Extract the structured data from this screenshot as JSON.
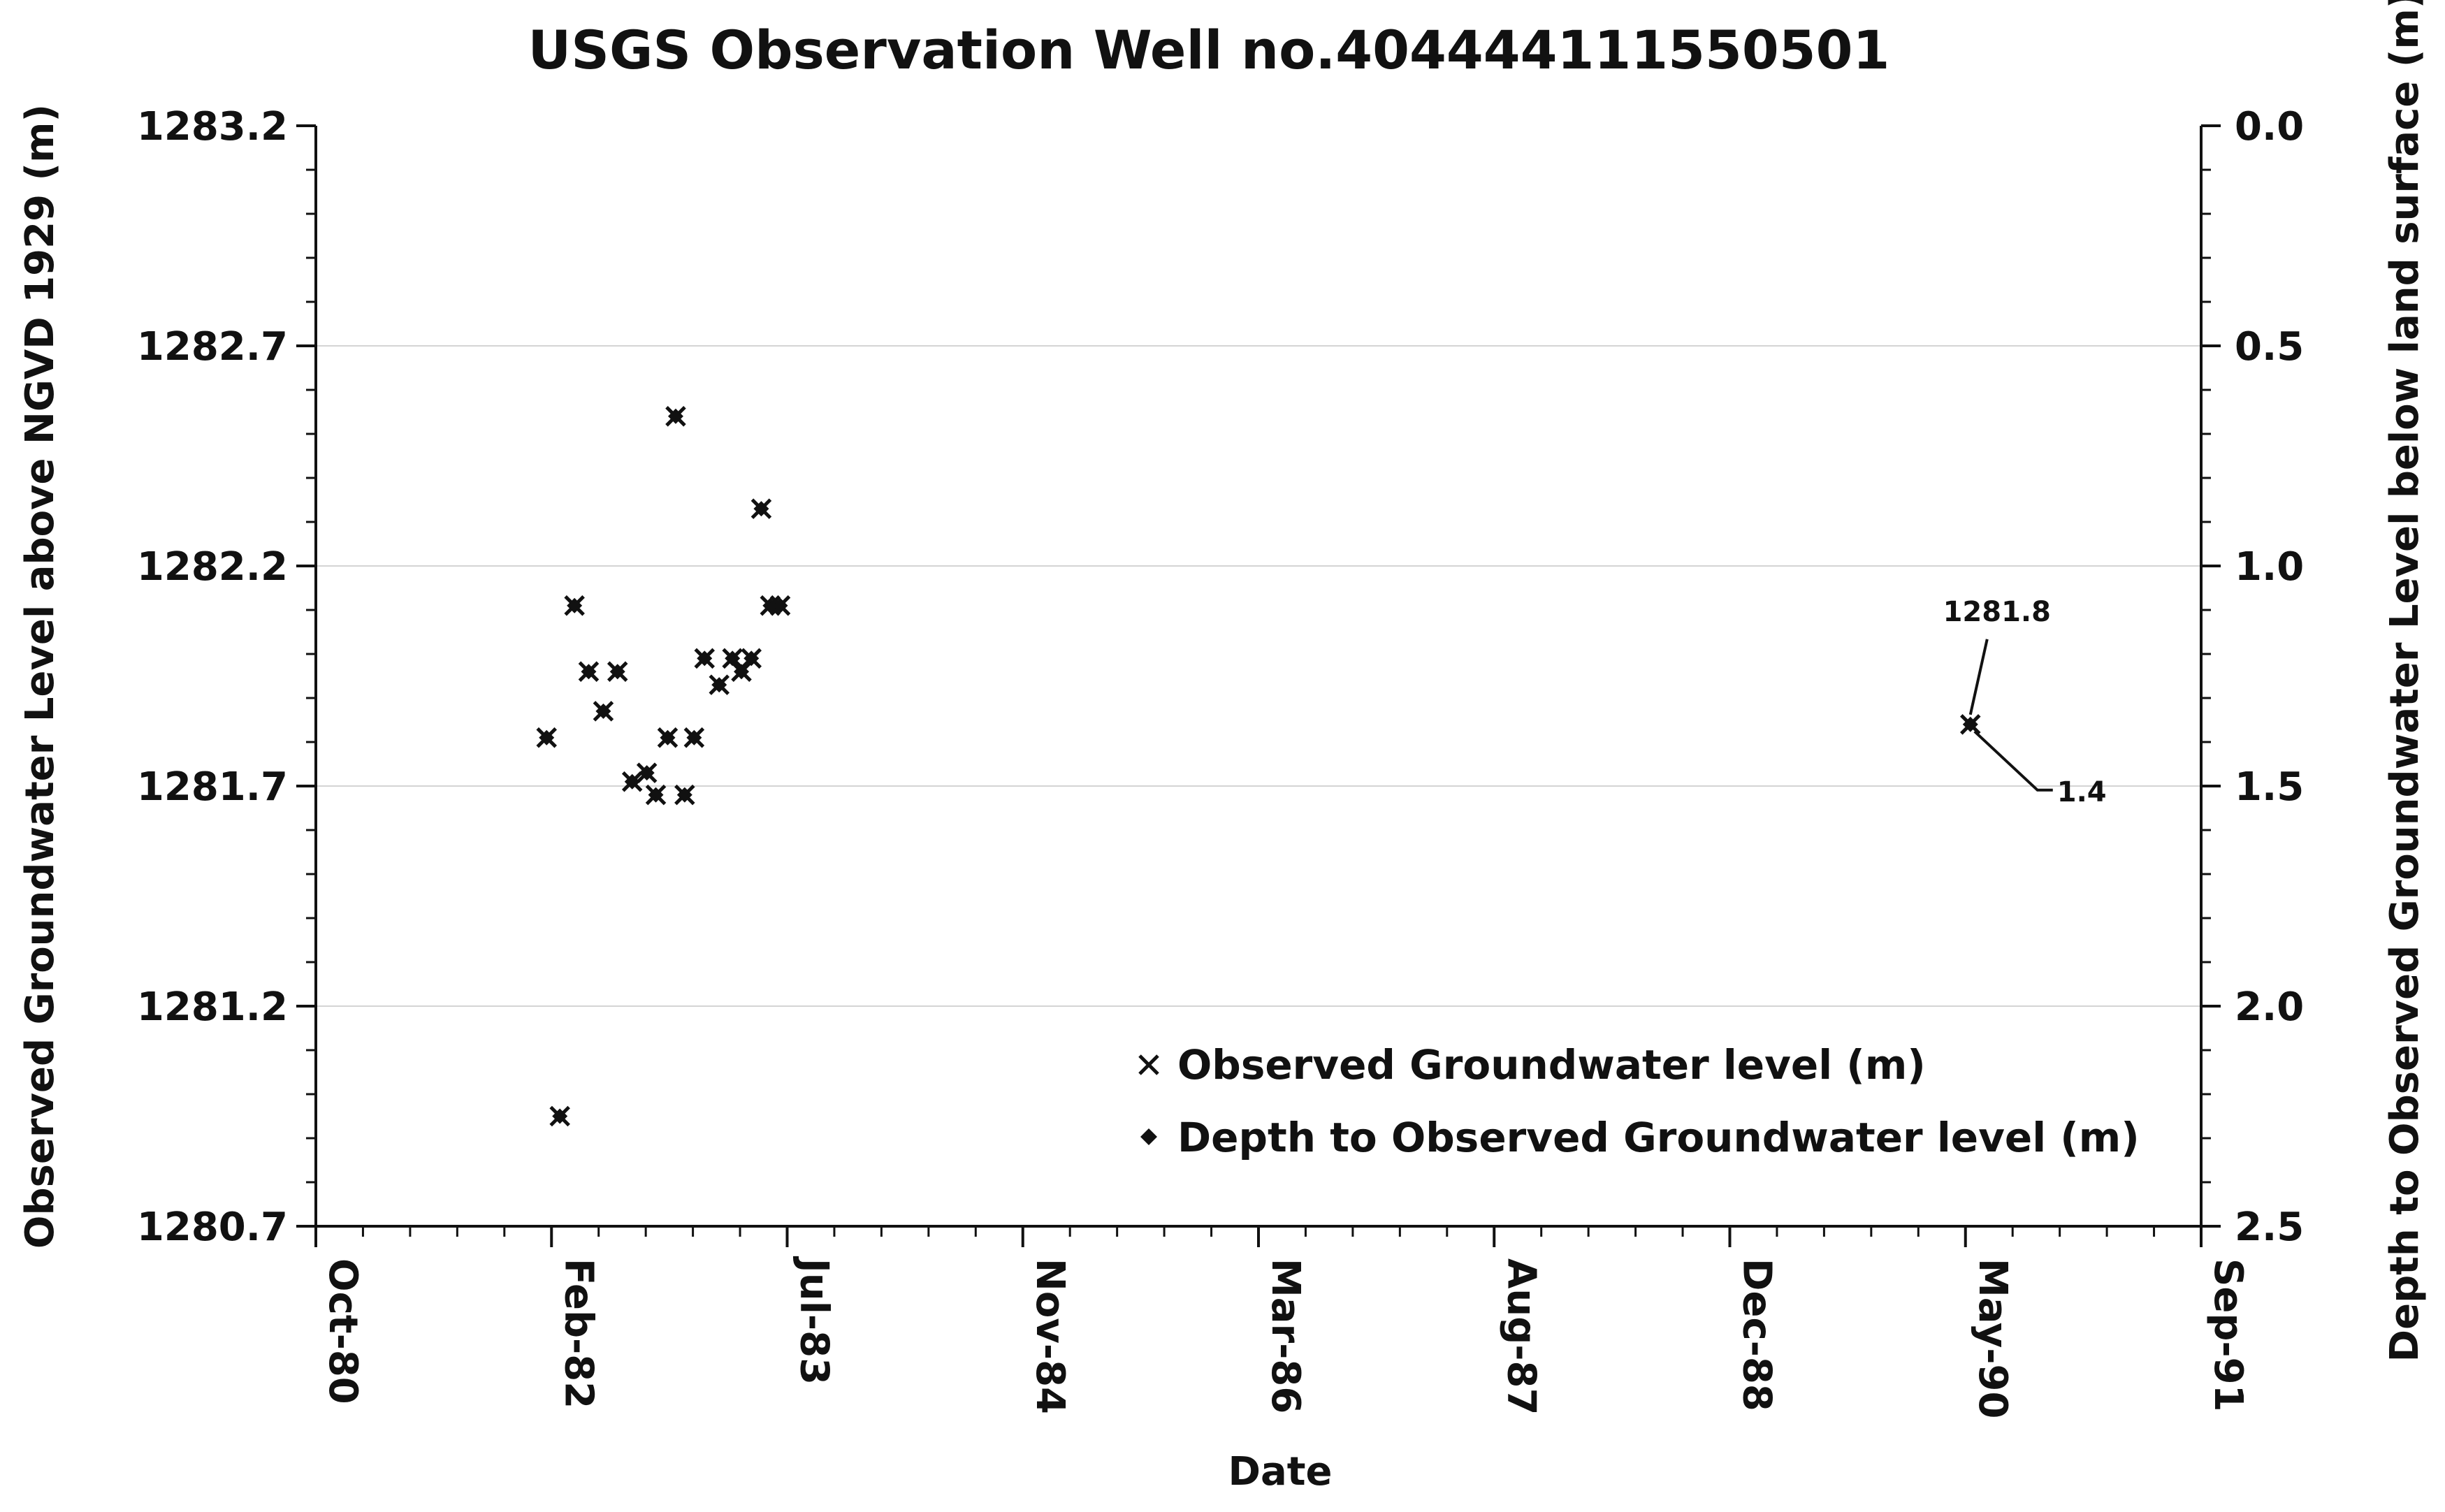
{
  "chart_data": {
    "type": "scatter",
    "title": "USGS Observation Well no.404444111550501",
    "xlabel": "Date",
    "ylabel": "Observed Groundwater Level above NGVD 1929 (m)",
    "y2label": "Depth to Observed Groundwater  Level below land surface (m)",
    "x_tick_labels": [
      "Oct-80",
      "Feb-82",
      "Jul-83",
      "Nov-84",
      "Mar-86",
      "Aug-87",
      "Dec-88",
      "May-90",
      "Sep-91"
    ],
    "xlim": [
      "1980-10-01",
      "1991-09-01"
    ],
    "ylim": [
      1280.7,
      1283.2
    ],
    "y_ticks": [
      "1280.7",
      "1281.2",
      "1281.7",
      "1282.2",
      "1282.7",
      "1283.2"
    ],
    "y2lim": [
      2.5,
      0.0
    ],
    "y2_ticks": [
      "0.0",
      "0.5",
      "1.0",
      "1.5",
      "2.0",
      "2.5"
    ],
    "grid": "horizontal",
    "legend_position": "bottom-right",
    "series": [
      {
        "name": "Observed Groundwater level (m)",
        "marker": "x",
        "x": [
          "1982-02-01",
          "1982-03-01",
          "1982-04-01",
          "1982-05-01",
          "1982-06-01",
          "1982-07-01",
          "1982-08-01",
          "1982-09-01",
          "1982-09-20",
          "1982-10-15",
          "1982-11-01",
          "1982-11-20",
          "1982-12-10",
          "1983-01-01",
          "1983-02-01",
          "1983-03-01",
          "1983-03-20",
          "1983-04-10",
          "1983-05-01",
          "1983-05-20",
          "1983-06-10",
          "1990-05-01"
        ],
        "y": [
          1281.81,
          1280.95,
          1282.11,
          1281.96,
          1281.87,
          1281.96,
          1281.71,
          1281.73,
          1281.68,
          1281.81,
          1282.54,
          1281.68,
          1281.81,
          1281.99,
          1281.93,
          1281.99,
          1281.96,
          1281.99,
          1282.33,
          1282.11,
          1282.11,
          1281.84
        ]
      },
      {
        "name": "Depth to Observed Groundwater level (m)",
        "marker": "diamond",
        "x": [
          "1982-02-01",
          "1982-03-01",
          "1982-04-01",
          "1982-05-01",
          "1982-06-01",
          "1982-07-01",
          "1982-08-01",
          "1982-09-01",
          "1982-09-20",
          "1982-10-15",
          "1982-11-01",
          "1982-11-20",
          "1982-12-10",
          "1983-01-01",
          "1983-02-01",
          "1983-03-01",
          "1983-03-20",
          "1983-04-10",
          "1983-05-01",
          "1983-05-20",
          "1983-06-10",
          "1990-05-01"
        ],
        "y": [
          1.39,
          2.25,
          1.09,
          1.24,
          1.33,
          1.24,
          1.49,
          1.47,
          1.52,
          1.39,
          0.66,
          1.52,
          1.39,
          1.21,
          1.27,
          1.21,
          1.24,
          1.21,
          0.87,
          1.09,
          1.09,
          1.36
        ]
      }
    ],
    "annotations": [
      {
        "text": "1281.8",
        "x": "1990-05-01",
        "series": "Observed Groundwater level (m)"
      },
      {
        "text": "1.4",
        "x": "1990-05-01",
        "series": "Depth to Observed Groundwater level (m)"
      }
    ]
  }
}
